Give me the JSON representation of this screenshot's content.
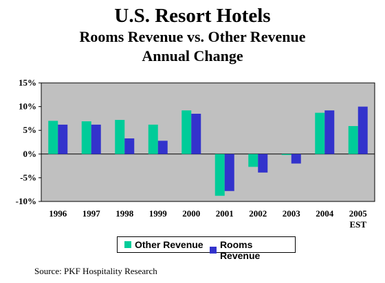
{
  "chart_data": {
    "type": "bar",
    "title": "U.S. Resort Hotels",
    "subtitle_line1": "Rooms Revenue vs. Other Revenue",
    "subtitle_line2": "Annual Change",
    "categories": [
      {
        "label": "1996",
        "sub": ""
      },
      {
        "label": "1997",
        "sub": ""
      },
      {
        "label": "1998",
        "sub": ""
      },
      {
        "label": "1999",
        "sub": ""
      },
      {
        "label": "2000",
        "sub": ""
      },
      {
        "label": "2001",
        "sub": ""
      },
      {
        "label": "2002",
        "sub": ""
      },
      {
        "label": "2003",
        "sub": ""
      },
      {
        "label": "2004",
        "sub": ""
      },
      {
        "label": "2005",
        "sub": "EST"
      }
    ],
    "series": [
      {
        "name": "Other Revenue",
        "color": "#00CC99",
        "values": [
          7.0,
          6.9,
          7.2,
          6.2,
          9.2,
          -8.8,
          -2.7,
          -0.2,
          8.7,
          5.9
        ]
      },
      {
        "name": "Rooms Revenue",
        "color": "#3333CC",
        "values": [
          6.2,
          6.2,
          3.3,
          2.8,
          8.5,
          -7.8,
          -3.9,
          -2.0,
          9.2,
          10.0
        ]
      }
    ],
    "ylim": [
      -10,
      15
    ],
    "yticks": [
      15,
      10,
      5,
      0,
      -5,
      -10
    ],
    "ytick_labels": [
      "15%",
      "10%",
      "5%",
      "0%",
      "-5%",
      "-10%"
    ],
    "grid": false,
    "legend": "bottom-center",
    "plot_background": "#C0C0C0"
  },
  "footer": {
    "source": "Source: PKF Hospitality Research"
  }
}
